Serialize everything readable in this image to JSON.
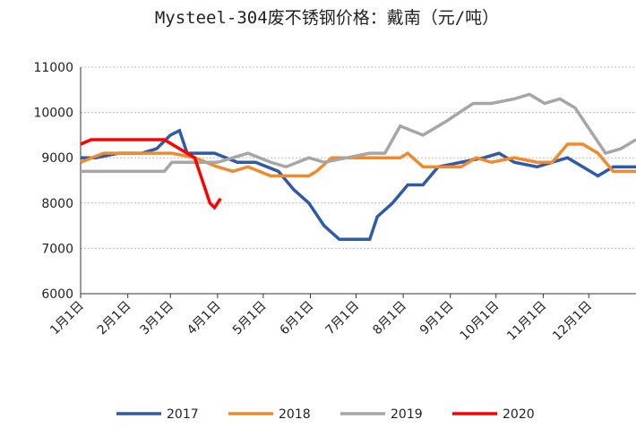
{
  "chart_data": {
    "type": "line",
    "title": "Mysteel-304废不锈钢价格：戴南（元/吨）",
    "xlim": [
      0,
      365
    ],
    "xticks": [
      {
        "value": 0,
        "label": "1月1日"
      },
      {
        "value": 31,
        "label": "2月1日"
      },
      {
        "value": 59,
        "label": "3月1日"
      },
      {
        "value": 90,
        "label": "4月1日"
      },
      {
        "value": 120,
        "label": "5月1日"
      },
      {
        "value": 151,
        "label": "6月1日"
      },
      {
        "value": 181,
        "label": "7月1日"
      },
      {
        "value": 212,
        "label": "8月1日"
      },
      {
        "value": 243,
        "label": "9月1日"
      },
      {
        "value": 273,
        "label": "10月1日"
      },
      {
        "value": 304,
        "label": "11月1日"
      },
      {
        "value": 334,
        "label": "12月1日"
      }
    ],
    "ylim": [
      6000,
      11000
    ],
    "yticks": [
      6000,
      7000,
      8000,
      9000,
      10000,
      11000
    ],
    "grid": true,
    "legend": "bottom",
    "series": [
      {
        "name": "2017",
        "color": "#2e5aa8",
        "x": [
          0,
          10,
          25,
          40,
          50,
          59,
          65,
          70,
          88,
          103,
          115,
          130,
          140,
          150,
          160,
          170,
          190,
          195,
          205,
          215,
          225,
          235,
          250,
          265,
          275,
          285,
          300,
          310,
          320,
          335,
          340,
          350,
          365
        ],
        "values": [
          9000,
          9000,
          9100,
          9100,
          9200,
          9500,
          9600,
          9100,
          9100,
          8900,
          8900,
          8700,
          8300,
          8000,
          7500,
          7200,
          7200,
          7700,
          8000,
          8400,
          8400,
          8800,
          8900,
          9000,
          9100,
          8900,
          8800,
          8900,
          9000,
          8700,
          8600,
          8800,
          8800
        ]
      },
      {
        "name": "2018",
        "color": "#f08a2c",
        "x": [
          0,
          15,
          60,
          75,
          90,
          100,
          110,
          125,
          150,
          155,
          165,
          210,
          215,
          225,
          250,
          260,
          270,
          285,
          300,
          310,
          320,
          330,
          340,
          350,
          365
        ],
        "values": [
          8900,
          9100,
          9100,
          9000,
          8800,
          8700,
          8800,
          8600,
          8600,
          8700,
          9000,
          9000,
          9100,
          8800,
          8800,
          9000,
          8900,
          9000,
          8900,
          8900,
          9300,
          9300,
          9100,
          8700,
          8700
        ]
      },
      {
        "name": "2019",
        "color": "#a6a6a6",
        "x": [
          0,
          55,
          60,
          90,
          100,
          110,
          125,
          135,
          150,
          160,
          175,
          190,
          200,
          210,
          225,
          240,
          258,
          270,
          285,
          295,
          305,
          315,
          325,
          335,
          345,
          355,
          365
        ],
        "values": [
          8700,
          8700,
          8900,
          8900,
          9000,
          9100,
          8900,
          8800,
          9000,
          8900,
          9000,
          9100,
          9100,
          9700,
          9500,
          9800,
          10200,
          10200,
          10300,
          10400,
          10200,
          10300,
          10100,
          9600,
          9100,
          9200,
          9400
        ]
      },
      {
        "name": "2020",
        "color": "#ff0000",
        "x": [
          0,
          7,
          55,
          65,
          75,
          80,
          85,
          88,
          92
        ],
        "values": [
          9300,
          9400,
          9400,
          9200,
          9000,
          8500,
          8000,
          7900,
          8100
        ]
      }
    ]
  }
}
